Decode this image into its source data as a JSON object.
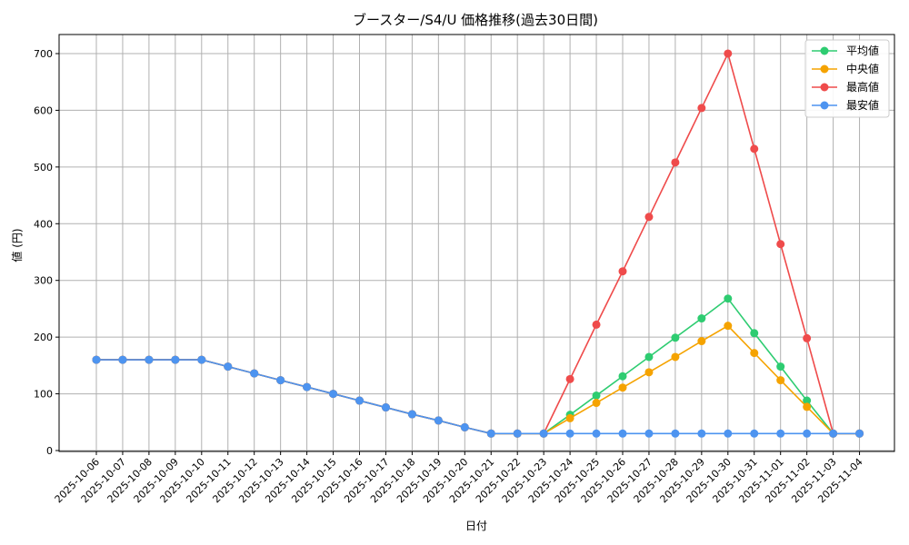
{
  "chart_data": {
    "type": "line",
    "title": "ブースター/S4/U 価格推移(過去30日間)",
    "xlabel": "日付",
    "ylabel": "値 (円)",
    "ylim": [
      0,
      730
    ],
    "yticks": [
      0,
      100,
      200,
      300,
      400,
      500,
      600,
      700
    ],
    "grid": true,
    "legend_position": "top-right",
    "categories": [
      "2025-10-06",
      "2025-10-07",
      "2025-10-08",
      "2025-10-09",
      "2025-10-10",
      "2025-10-11",
      "2025-10-12",
      "2025-10-13",
      "2025-10-14",
      "2025-10-15",
      "2025-10-16",
      "2025-10-17",
      "2025-10-18",
      "2025-10-19",
      "2025-10-20",
      "2025-10-21",
      "2025-10-22",
      "2025-10-23",
      "2025-10-24",
      "2025-10-25",
      "2025-10-26",
      "2025-10-27",
      "2025-10-28",
      "2025-10-29",
      "2025-10-30",
      "2025-10-31",
      "2025-11-01",
      "2025-11-02",
      "2025-11-03",
      "2025-11-04"
    ],
    "series": [
      {
        "name": "平均値",
        "color": "#2ecc71",
        "values": [
          160,
          160,
          160,
          160,
          160,
          148,
          136,
          124,
          112,
          100,
          88,
          76,
          64,
          53,
          41,
          30,
          30,
          30,
          63,
          97,
          131,
          165,
          199,
          233,
          268,
          207,
          148,
          88,
          30,
          30
        ]
      },
      {
        "name": "中央値",
        "color": "#f5a300",
        "values": [
          160,
          160,
          160,
          160,
          160,
          148,
          136,
          124,
          112,
          100,
          88,
          76,
          64,
          53,
          41,
          30,
          30,
          30,
          57,
          84,
          111,
          138,
          165,
          193,
          220,
          172,
          124,
          77,
          30,
          30
        ]
      },
      {
        "name": "最高値",
        "color": "#ef4b4b",
        "values": [
          160,
          160,
          160,
          160,
          160,
          148,
          136,
          124,
          112,
          100,
          88,
          76,
          64,
          53,
          41,
          30,
          30,
          30,
          126,
          222,
          316,
          412,
          508,
          604,
          700,
          532,
          364,
          198,
          30,
          30
        ]
      },
      {
        "name": "最安値",
        "color": "#4d94f0",
        "values": [
          160,
          160,
          160,
          160,
          160,
          148,
          136,
          124,
          112,
          100,
          88,
          76,
          64,
          53,
          41,
          30,
          30,
          30,
          30,
          30,
          30,
          30,
          30,
          30,
          30,
          30,
          30,
          30,
          30,
          30
        ]
      }
    ]
  }
}
